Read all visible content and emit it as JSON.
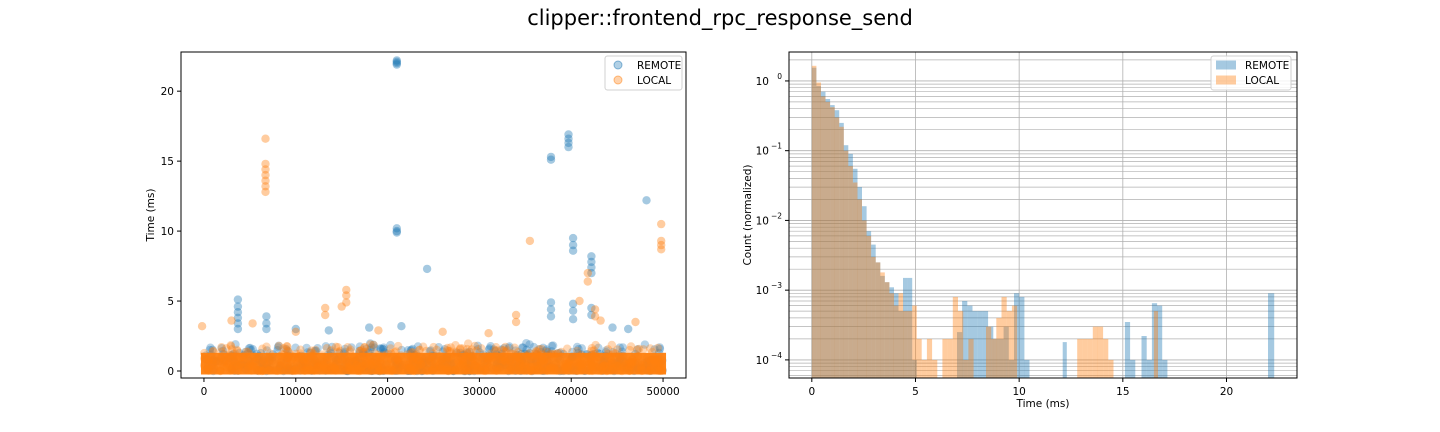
{
  "figure": {
    "title": "clipper::frontend_rpc_response_send"
  },
  "colors": {
    "remote": "#1f77b4",
    "local": "#ff7f0e",
    "grid": "#b0b0b0"
  },
  "chart_data": [
    {
      "type": "scatter",
      "title": "",
      "xlabel": "",
      "ylabel": "Time (ms)",
      "xlim": [
        -2500,
        52500
      ],
      "ylim": [
        -0.5,
        22.8
      ],
      "xticks": [
        0,
        10000,
        20000,
        30000,
        40000,
        50000
      ],
      "yticks": [
        0,
        5,
        10,
        15,
        20
      ],
      "grid": false,
      "legend": "top-right",
      "series": [
        {
          "name": "REMOTE",
          "color": "#1f77b4",
          "baseline": {
            "x": [
              0,
              50000
            ],
            "y": [
              0,
              2
            ]
          },
          "points": [
            [
              21000,
              22.0
            ],
            [
              21000,
              22.2
            ],
            [
              21000,
              22.1
            ],
            [
              21000,
              21.9
            ],
            [
              39700,
              16.9
            ],
            [
              39700,
              16.6
            ],
            [
              39700,
              16.3
            ],
            [
              39700,
              16.0
            ],
            [
              37800,
              15.3
            ],
            [
              37800,
              15.1
            ],
            [
              48200,
              12.2
            ],
            [
              21000,
              10.2
            ],
            [
              21000,
              10.0
            ],
            [
              21000,
              9.9
            ],
            [
              40200,
              9.5
            ],
            [
              40200,
              9.0
            ],
            [
              40200,
              8.6
            ],
            [
              42200,
              8.2
            ],
            [
              42200,
              7.8
            ],
            [
              42200,
              7.4
            ],
            [
              42200,
              7.0
            ],
            [
              24300,
              7.3
            ],
            [
              3700,
              5.1
            ],
            [
              3700,
              4.6
            ],
            [
              3700,
              4.2
            ],
            [
              3700,
              3.8
            ],
            [
              3700,
              3.4
            ],
            [
              3700,
              3.0
            ],
            [
              6800,
              3.9
            ],
            [
              6800,
              3.4
            ],
            [
              6800,
              3.0
            ],
            [
              37800,
              4.9
            ],
            [
              37800,
              4.4
            ],
            [
              37800,
              3.9
            ],
            [
              40200,
              4.8
            ],
            [
              40200,
              4.3
            ],
            [
              40200,
              3.7
            ],
            [
              42200,
              4.5
            ],
            [
              42200,
              4.0
            ],
            [
              44500,
              3.1
            ],
            [
              46200,
              3.0
            ],
            [
              18000,
              3.1
            ],
            [
              21500,
              3.2
            ],
            [
              10000,
              3.0
            ],
            [
              13600,
              2.9
            ]
          ]
        },
        {
          "name": "LOCAL",
          "color": "#ff7f0e",
          "baseline": {
            "x": [
              0,
              50000
            ],
            "y": [
              0,
              2
            ]
          },
          "points": [
            [
              6700,
              16.6
            ],
            [
              6700,
              14.8
            ],
            [
              6700,
              14.4
            ],
            [
              6700,
              14.0
            ],
            [
              6700,
              13.6
            ],
            [
              6700,
              13.2
            ],
            [
              6700,
              12.8
            ],
            [
              49800,
              10.5
            ],
            [
              49800,
              9.3
            ],
            [
              49800,
              9.0
            ],
            [
              49800,
              8.7
            ],
            [
              35500,
              9.3
            ],
            [
              41800,
              7.0
            ],
            [
              41800,
              6.4
            ],
            [
              40900,
              5.0
            ],
            [
              15500,
              5.8
            ],
            [
              15500,
              5.4
            ],
            [
              15500,
              4.9
            ],
            [
              13200,
              4.5
            ],
            [
              13200,
              4.0
            ],
            [
              15000,
              4.6
            ],
            [
              42600,
              4.4
            ],
            [
              42600,
              3.9
            ],
            [
              43200,
              3.6
            ],
            [
              34000,
              4.0
            ],
            [
              34000,
              3.5
            ],
            [
              -200,
              3.2
            ],
            [
              3000,
              3.6
            ],
            [
              5300,
              3.4
            ],
            [
              10000,
              2.8
            ],
            [
              19000,
              2.9
            ],
            [
              26000,
              2.8
            ],
            [
              47000,
              3.5
            ],
            [
              31000,
              2.7
            ]
          ]
        }
      ]
    },
    {
      "type": "bar",
      "title": "",
      "xlabel": "Time (ms)",
      "ylabel": "Count (normalized)",
      "xlim": [
        -1.1,
        23.4
      ],
      "ylim": [
        5.5e-05,
        2.6
      ],
      "yscale": "log",
      "xticks": [
        0,
        5,
        10,
        15,
        20
      ],
      "yticks": [
        0.0001,
        0.001,
        0.01,
        0.1,
        1
      ],
      "ytick_labels": [
        "10",
        "10",
        "10",
        "10",
        "10"
      ],
      "ytick_exponents": [
        "−4",
        "−3",
        "−2",
        "−1",
        "0"
      ],
      "grid": true,
      "legend": "top-right",
      "series": [
        {
          "name": "REMOTE",
          "color": "#1f77b4",
          "bins": [
            [
              0.0,
              0.22,
              1.55
            ],
            [
              0.22,
              0.44,
              0.85
            ],
            [
              0.44,
              0.66,
              0.7
            ],
            [
              0.66,
              0.88,
              0.55
            ],
            [
              0.88,
              1.1,
              0.45
            ],
            [
              1.1,
              1.32,
              0.38
            ],
            [
              1.32,
              1.54,
              0.25
            ],
            [
              1.54,
              1.76,
              0.12
            ],
            [
              1.76,
              1.98,
              0.09
            ],
            [
              1.98,
              2.2,
              0.055
            ],
            [
              2.2,
              2.42,
              0.03
            ],
            [
              2.42,
              2.64,
              0.016
            ],
            [
              2.64,
              2.86,
              0.007
            ],
            [
              2.86,
              3.08,
              0.0045
            ],
            [
              3.08,
              3.3,
              0.0025
            ],
            [
              3.3,
              3.52,
              0.0016
            ],
            [
              3.52,
              3.74,
              0.0013
            ],
            [
              3.74,
              3.96,
              0.0011
            ],
            [
              3.96,
              4.18,
              0.0009
            ],
            [
              4.18,
              4.4,
              0.0005
            ],
            [
              4.4,
              4.62,
              0.0015
            ],
            [
              4.62,
              4.84,
              0.0015
            ],
            [
              4.84,
              5.06,
              0.0001
            ],
            [
              7.0,
              7.25,
              0.00025
            ],
            [
              7.25,
              7.5,
              0.0007
            ],
            [
              7.5,
              7.75,
              0.0006
            ],
            [
              7.75,
              8.0,
              0.0005
            ],
            [
              8.0,
              8.25,
              0.0005
            ],
            [
              8.25,
              8.5,
              0.0005
            ],
            [
              8.5,
              8.75,
              0.0003
            ],
            [
              8.75,
              9.0,
              0.0002
            ],
            [
              9.0,
              9.25,
              0.0002
            ],
            [
              9.25,
              9.5,
              0.0003
            ],
            [
              9.5,
              9.75,
              0.0001
            ],
            [
              9.75,
              10.0,
              0.0009
            ],
            [
              10.0,
              10.25,
              0.0008
            ],
            [
              10.25,
              10.5,
              0.0001
            ],
            [
              12.1,
              12.3,
              0.00018
            ],
            [
              15.1,
              15.35,
              0.00035
            ],
            [
              15.35,
              15.6,
              0.0001
            ],
            [
              15.9,
              16.15,
              0.00022
            ],
            [
              16.15,
              16.4,
              0.0001
            ],
            [
              16.4,
              16.65,
              0.00065
            ],
            [
              16.65,
              16.9,
              0.0006
            ],
            [
              16.9,
              17.15,
              0.0001
            ],
            [
              22.0,
              22.3,
              0.0009
            ]
          ]
        },
        {
          "name": "LOCAL",
          "color": "#ff7f0e",
          "bins": [
            [
              0.0,
              0.22,
              1.65
            ],
            [
              0.22,
              0.44,
              0.95
            ],
            [
              0.44,
              0.66,
              0.6
            ],
            [
              0.66,
              0.88,
              0.5
            ],
            [
              0.88,
              1.1,
              0.42
            ],
            [
              1.1,
              1.32,
              0.3
            ],
            [
              1.32,
              1.54,
              0.22
            ],
            [
              1.54,
              1.76,
              0.1
            ],
            [
              1.76,
              1.98,
              0.06
            ],
            [
              1.98,
              2.2,
              0.035
            ],
            [
              2.2,
              2.42,
              0.02
            ],
            [
              2.42,
              2.64,
              0.01
            ],
            [
              2.64,
              2.86,
              0.006
            ],
            [
              2.86,
              3.08,
              0.003
            ],
            [
              3.08,
              3.3,
              0.0025
            ],
            [
              3.3,
              3.52,
              0.0018
            ],
            [
              3.52,
              3.74,
              0.0013
            ],
            [
              3.74,
              3.96,
              0.0009
            ],
            [
              3.96,
              4.18,
              0.0006
            ],
            [
              4.18,
              4.4,
              0.0009
            ],
            [
              4.4,
              4.62,
              0.0005
            ],
            [
              4.62,
              4.84,
              0.0005
            ],
            [
              4.84,
              5.06,
              0.0006
            ],
            [
              5.06,
              5.3,
              0.0002
            ],
            [
              5.3,
              5.55,
              0.0001
            ],
            [
              5.55,
              5.8,
              0.0002
            ],
            [
              5.8,
              6.05,
              0.0001
            ],
            [
              6.3,
              6.55,
              0.0002
            ],
            [
              6.55,
              6.8,
              0.0002
            ],
            [
              6.8,
              7.05,
              0.0008
            ],
            [
              7.05,
              7.3,
              0.0005
            ],
            [
              7.3,
              7.55,
              0.0001
            ],
            [
              7.55,
              7.8,
              0.0002
            ],
            [
              8.4,
              8.65,
              0.0003
            ],
            [
              8.65,
              8.9,
              0.0002
            ],
            [
              8.9,
              9.15,
              0.0004
            ],
            [
              9.15,
              9.4,
              0.0008
            ],
            [
              9.4,
              9.65,
              0.0005
            ],
            [
              9.65,
              9.9,
              0.0006
            ],
            [
              12.8,
              13.05,
              0.0002
            ],
            [
              13.05,
              13.3,
              0.0002
            ],
            [
              13.3,
              13.55,
              0.0002
            ],
            [
              13.55,
              13.8,
              0.0003
            ],
            [
              13.8,
              14.05,
              0.0003
            ],
            [
              14.05,
              14.3,
              0.0002
            ],
            [
              14.3,
              14.55,
              0.0001
            ],
            [
              16.5,
              16.7,
              0.0005
            ]
          ]
        }
      ]
    }
  ]
}
